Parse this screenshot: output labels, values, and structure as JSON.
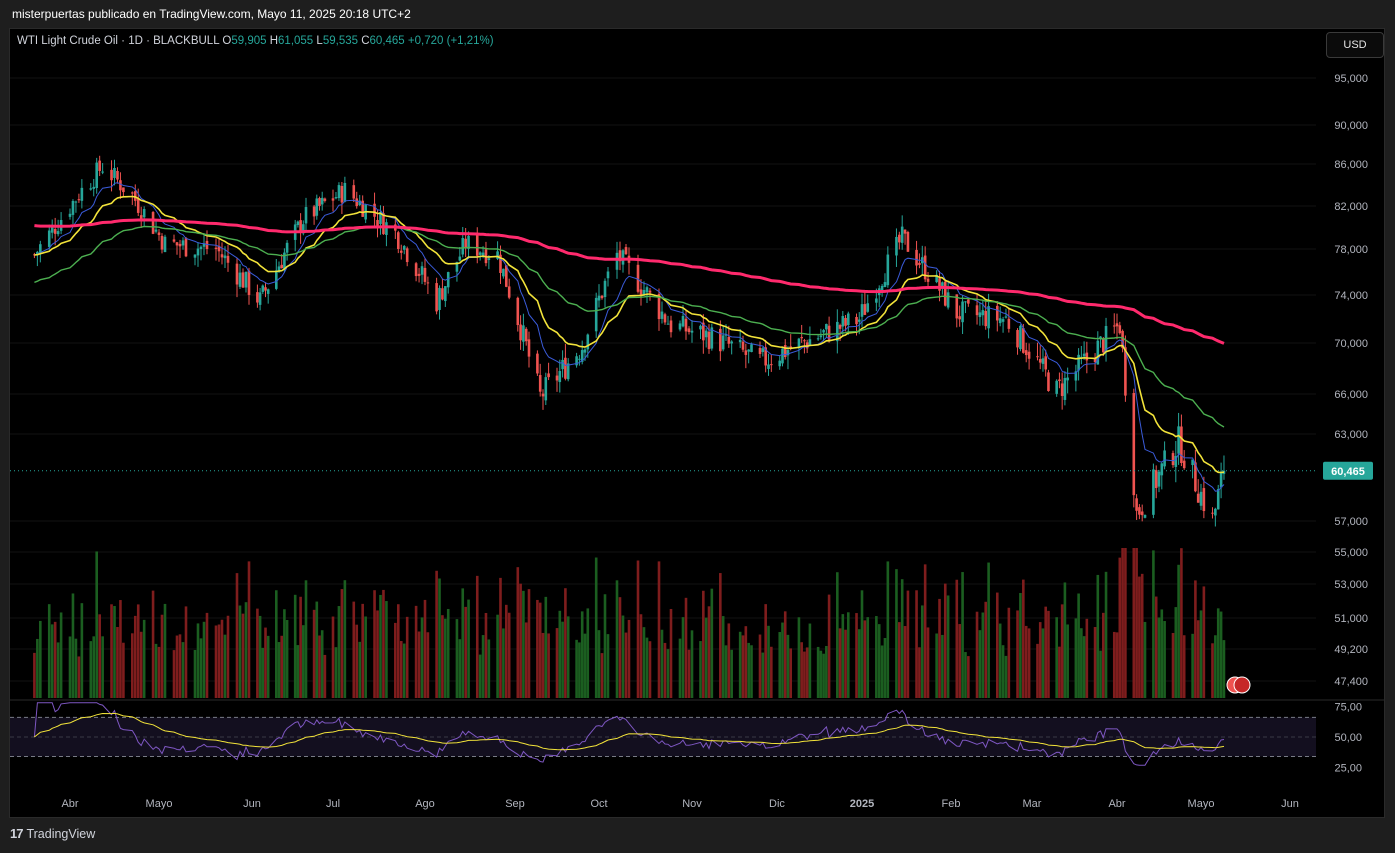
{
  "header": {
    "publisher_line": "misterpuertas publicado en TradingView.com, Mayo 11, 2025 20:18 UTC+2"
  },
  "legend": {
    "symbol": "WTI Light Crude Oil · 1D · BLACKBULL",
    "open_label": "O",
    "open": "59,905",
    "high_label": "H",
    "high": "61,055",
    "low_label": "L",
    "low": "59,535",
    "close_label": "C",
    "close": "60,465",
    "change": "+0,720 (+1,21%)"
  },
  "currency_button": "USD",
  "footer": {
    "brand": "TradingView",
    "logo_glyph": "17"
  },
  "colors": {
    "up": "#26a69a",
    "down": "#ef5350",
    "vol_up": "#1b5e20",
    "vol_down": "#7f1d1d",
    "ema_fast": "#3a5bd9",
    "ema_mid": "#f2e33a",
    "ema_slow": "#4caf50",
    "ema_long": "#ff2a6d",
    "rsi": "#7e57c2",
    "rsi_ma": "#f2e33a",
    "price_tag": "#26a69a"
  },
  "chart_data": {
    "type": "candlestick",
    "price_axis": {
      "ticks": [
        "95,000",
        "90,000",
        "86,000",
        "82,000",
        "78,000",
        "74,000",
        "70,000",
        "66,000",
        "63,000",
        "57,000",
        "55,000",
        "53,000",
        "51,000",
        "49,200",
        "47,400"
      ],
      "tick_values": [
        95,
        90,
        86,
        82,
        78,
        74,
        70,
        66,
        63,
        57,
        55,
        53,
        51,
        49.2,
        47.4
      ],
      "scale": "log",
      "last_price_label": "60,465",
      "last_price": 60.465
    },
    "rsi_axis": {
      "ticks": [
        "75,00",
        "50,00",
        "25,00"
      ],
      "tick_values": [
        75,
        50,
        25
      ]
    },
    "x_axis": {
      "labels": [
        "Abr",
        "Mayo",
        "Jun",
        "Jul",
        "Ago",
        "Sep",
        "Oct",
        "Nov",
        "Dic",
        "2025",
        "Feb",
        "Mar",
        "Abr",
        "Mayo",
        "Jun"
      ],
      "dates": [
        "2024-04-01",
        "2024-05-01",
        "2024-06-01",
        "2024-07-01",
        "2024-08-01",
        "2024-09-01",
        "2024-10-01",
        "2024-11-01",
        "2024-12-01",
        "2025-01-01",
        "2025-02-01",
        "2025-03-01",
        "2025-04-01",
        "2025-05-01",
        "2025-06-01"
      ]
    },
    "start_date": "2024-03-20",
    "end_date": "2025-05-09",
    "close_path": [
      [
        "2024-03-20",
        77.5
      ],
      [
        "2024-04-05",
        83.5
      ],
      [
        "2024-04-12",
        85.8
      ],
      [
        "2024-04-22",
        83.0
      ],
      [
        "2024-05-03",
        78.5
      ],
      [
        "2024-05-20",
        78.0
      ],
      [
        "2024-06-04",
        73.5
      ],
      [
        "2024-06-20",
        80.8
      ],
      [
        "2024-07-05",
        83.5
      ],
      [
        "2024-07-22",
        79.5
      ],
      [
        "2024-08-05",
        73.5
      ],
      [
        "2024-08-15",
        78.5
      ],
      [
        "2024-08-26",
        77.5
      ],
      [
        "2024-09-10",
        65.8
      ],
      [
        "2024-09-25",
        69.8
      ],
      [
        "2024-10-07",
        77.5
      ],
      [
        "2024-10-25",
        71.5
      ],
      [
        "2024-11-08",
        70.5
      ],
      [
        "2024-11-25",
        68.5
      ],
      [
        "2024-12-10",
        70.0
      ],
      [
        "2024-12-31",
        72.0
      ],
      [
        "2025-01-15",
        79.0
      ],
      [
        "2025-02-03",
        72.5
      ],
      [
        "2025-02-20",
        72.0
      ],
      [
        "2025-03-10",
        66.2
      ],
      [
        "2025-04-02",
        71.5
      ],
      [
        "2025-04-08",
        57.5
      ],
      [
        "2025-04-23",
        62.5
      ],
      [
        "2025-05-05",
        57.0
      ],
      [
        "2025-05-09",
        60.465
      ]
    ],
    "series": [
      {
        "type": "ema",
        "period": 10
      },
      {
        "type": "ema",
        "period": 20
      },
      {
        "type": "ema",
        "period": 50
      },
      {
        "type": "ema",
        "period": 200
      }
    ],
    "indicators": [
      "volume",
      "rsi"
    ]
  }
}
